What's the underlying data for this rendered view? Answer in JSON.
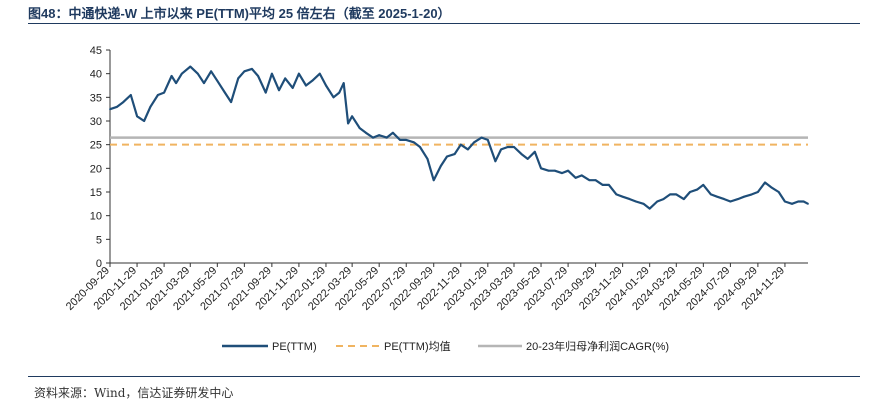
{
  "title": "图48：中通快递-W 上市以来 PE(TTM)平均 25 倍左右（截至 2025-1-20）",
  "source": "资料来源：Wind，信达证券研发中心",
  "chart_data": {
    "type": "line",
    "title": "图48：中通快递-W 上市以来 PE(TTM)平均 25 倍左右（截至 2025-1-20）",
    "xlabel": "",
    "ylabel": "",
    "ylim": [
      0,
      45
    ],
    "yticks": [
      0,
      5,
      10,
      15,
      20,
      25,
      30,
      35,
      40,
      45
    ],
    "x_range": [
      "2020-09-29",
      "2025-01-20"
    ],
    "categories": [
      "2020-09-29",
      "2020-11-29",
      "2021-01-29",
      "2021-03-29",
      "2021-05-29",
      "2021-07-29",
      "2021-09-29",
      "2021-11-29",
      "2022-01-29",
      "2022-03-29",
      "2022-05-29",
      "2022-07-29",
      "2022-09-29",
      "2022-11-29",
      "2023-01-29",
      "2023-03-29",
      "2023-05-29",
      "2023-07-29",
      "2023-09-29",
      "2023-11-29",
      "2024-01-29",
      "2024-03-29",
      "2024-05-29",
      "2024-07-29",
      "2024-09-29",
      "2024-11-29"
    ],
    "series": [
      {
        "name": "PE(TTM)",
        "color": "#1f4e79",
        "style": "solid",
        "x": [
          "2020-09-29",
          "2020-10-15",
          "2020-10-29",
          "2020-11-15",
          "2020-11-29",
          "2020-12-15",
          "2020-12-29",
          "2021-01-15",
          "2021-01-29",
          "2021-02-15",
          "2021-02-25",
          "2021-03-10",
          "2021-03-29",
          "2021-04-15",
          "2021-04-29",
          "2021-05-15",
          "2021-05-29",
          "2021-06-15",
          "2021-06-29",
          "2021-07-15",
          "2021-07-29",
          "2021-08-15",
          "2021-08-29",
          "2021-09-15",
          "2021-09-29",
          "2021-10-15",
          "2021-10-29",
          "2021-11-15",
          "2021-11-29",
          "2021-12-15",
          "2021-12-29",
          "2022-01-15",
          "2022-01-29",
          "2022-02-15",
          "2022-02-28",
          "2022-03-10",
          "2022-03-20",
          "2022-03-29",
          "2022-04-15",
          "2022-04-29",
          "2022-05-15",
          "2022-05-29",
          "2022-06-15",
          "2022-06-29",
          "2022-07-15",
          "2022-07-29",
          "2022-08-15",
          "2022-08-29",
          "2022-09-15",
          "2022-09-29",
          "2022-10-15",
          "2022-10-29",
          "2022-11-15",
          "2022-11-29",
          "2022-12-15",
          "2022-12-29",
          "2023-01-15",
          "2023-01-29",
          "2023-02-15",
          "2023-02-28",
          "2023-03-15",
          "2023-03-29",
          "2023-04-15",
          "2023-04-29",
          "2023-05-15",
          "2023-05-29",
          "2023-06-15",
          "2023-06-29",
          "2023-07-15",
          "2023-07-29",
          "2023-08-15",
          "2023-08-29",
          "2023-09-15",
          "2023-09-29",
          "2023-10-15",
          "2023-10-29",
          "2023-11-15",
          "2023-11-29",
          "2023-12-15",
          "2023-12-29",
          "2024-01-15",
          "2024-01-29",
          "2024-02-15",
          "2024-02-29",
          "2024-03-15",
          "2024-03-29",
          "2024-04-15",
          "2024-04-29",
          "2024-05-15",
          "2024-05-29",
          "2024-06-15",
          "2024-06-29",
          "2024-07-15",
          "2024-07-29",
          "2024-08-15",
          "2024-08-29",
          "2024-09-15",
          "2024-09-29",
          "2024-10-15",
          "2024-10-29",
          "2024-11-15",
          "2024-11-29",
          "2024-12-15",
          "2024-12-29",
          "2025-01-10",
          "2025-01-20"
        ],
        "values": [
          32.5,
          33,
          34,
          35.5,
          31,
          30,
          33,
          35.5,
          36,
          39.5,
          38,
          40,
          41.5,
          40,
          38,
          40.5,
          38.5,
          36,
          34,
          39,
          40.5,
          41,
          39.5,
          36,
          40,
          36.5,
          39,
          37,
          40,
          37.5,
          38.5,
          40,
          37.5,
          35,
          36,
          38,
          29.5,
          31,
          28.5,
          27.5,
          26.5,
          27,
          26.5,
          27.5,
          26,
          26,
          25.5,
          24.5,
          22,
          17.5,
          20.5,
          22.5,
          23,
          25,
          24,
          25.5,
          26.5,
          26,
          21.5,
          24,
          24.5,
          24.5,
          23,
          22,
          23.5,
          20,
          19.5,
          19.5,
          19,
          19.5,
          18,
          18.5,
          17.5,
          17.5,
          16.5,
          16.5,
          14.5,
          14,
          13.5,
          13,
          12.5,
          11.5,
          13,
          13.5,
          14.5,
          14.5,
          13.5,
          15,
          15.5,
          16.5,
          14.5,
          14,
          13.5,
          13,
          13.5,
          14,
          14.5,
          15,
          17,
          16,
          15,
          13,
          12.5,
          13,
          13,
          12.5
        ]
      },
      {
        "name": "PE(TTM)均值",
        "color": "#f0b461",
        "style": "dashed",
        "value": 25
      },
      {
        "name": "20-23年归母净利润CAGR(%)",
        "color": "#b5b5b5",
        "style": "solid",
        "value": 26.5
      }
    ],
    "legend": [
      "PE(TTM)",
      "PE(TTM)均值",
      "20-23年归母净利润CAGR(%)"
    ],
    "legend_position": "bottom-center",
    "grid": false
  }
}
